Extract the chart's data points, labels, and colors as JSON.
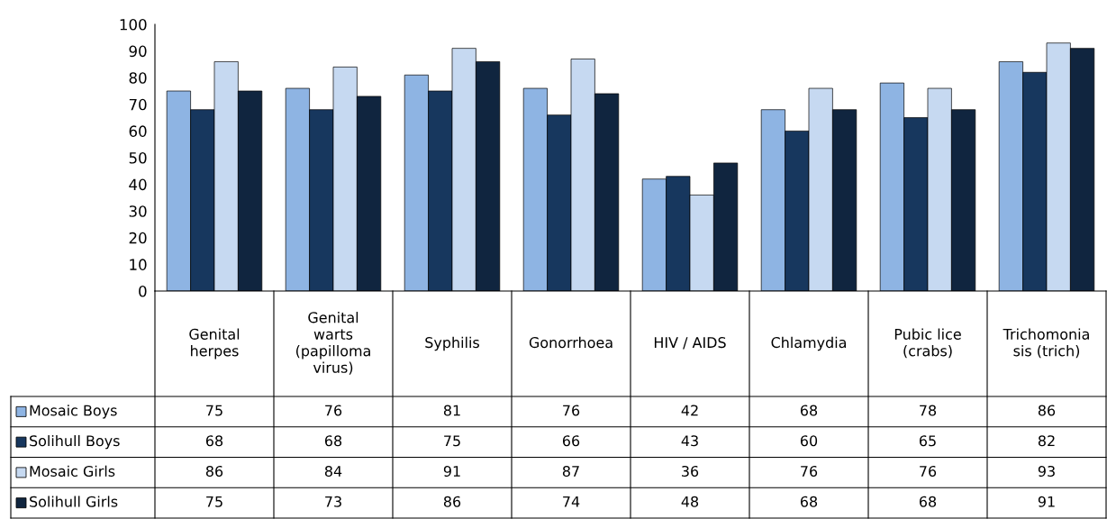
{
  "chart_data": {
    "type": "bar",
    "categories": [
      "Genital herpes",
      "Genital warts (papilloma virus)",
      "Syphilis",
      "Gonorrhoea",
      "HIV / AIDS",
      "Chlamydia",
      "Pubic lice (crabs)",
      "Trichomoniasis (trich)"
    ],
    "series": [
      {
        "name": "Mosaic Boys",
        "color": "#8eb4e3",
        "values": [
          75,
          76,
          81,
          76,
          42,
          68,
          78,
          86
        ]
      },
      {
        "name": "Solihull Boys",
        "color": "#17375e",
        "values": [
          68,
          68,
          75,
          66,
          43,
          60,
          65,
          82
        ]
      },
      {
        "name": "Mosaic Girls",
        "color": "#c6d9f1",
        "values": [
          86,
          84,
          91,
          87,
          36,
          76,
          76,
          93
        ]
      },
      {
        "name": "Solihull Girls",
        "color": "#10253f",
        "values": [
          75,
          73,
          86,
          74,
          48,
          68,
          68,
          91
        ]
      }
    ],
    "ylim": [
      0,
      100
    ],
    "yticks": [
      0,
      10,
      20,
      30,
      40,
      50,
      60,
      70,
      80,
      90,
      100
    ],
    "grid": false,
    "legend": "bottom left",
    "data_labels": true
  }
}
